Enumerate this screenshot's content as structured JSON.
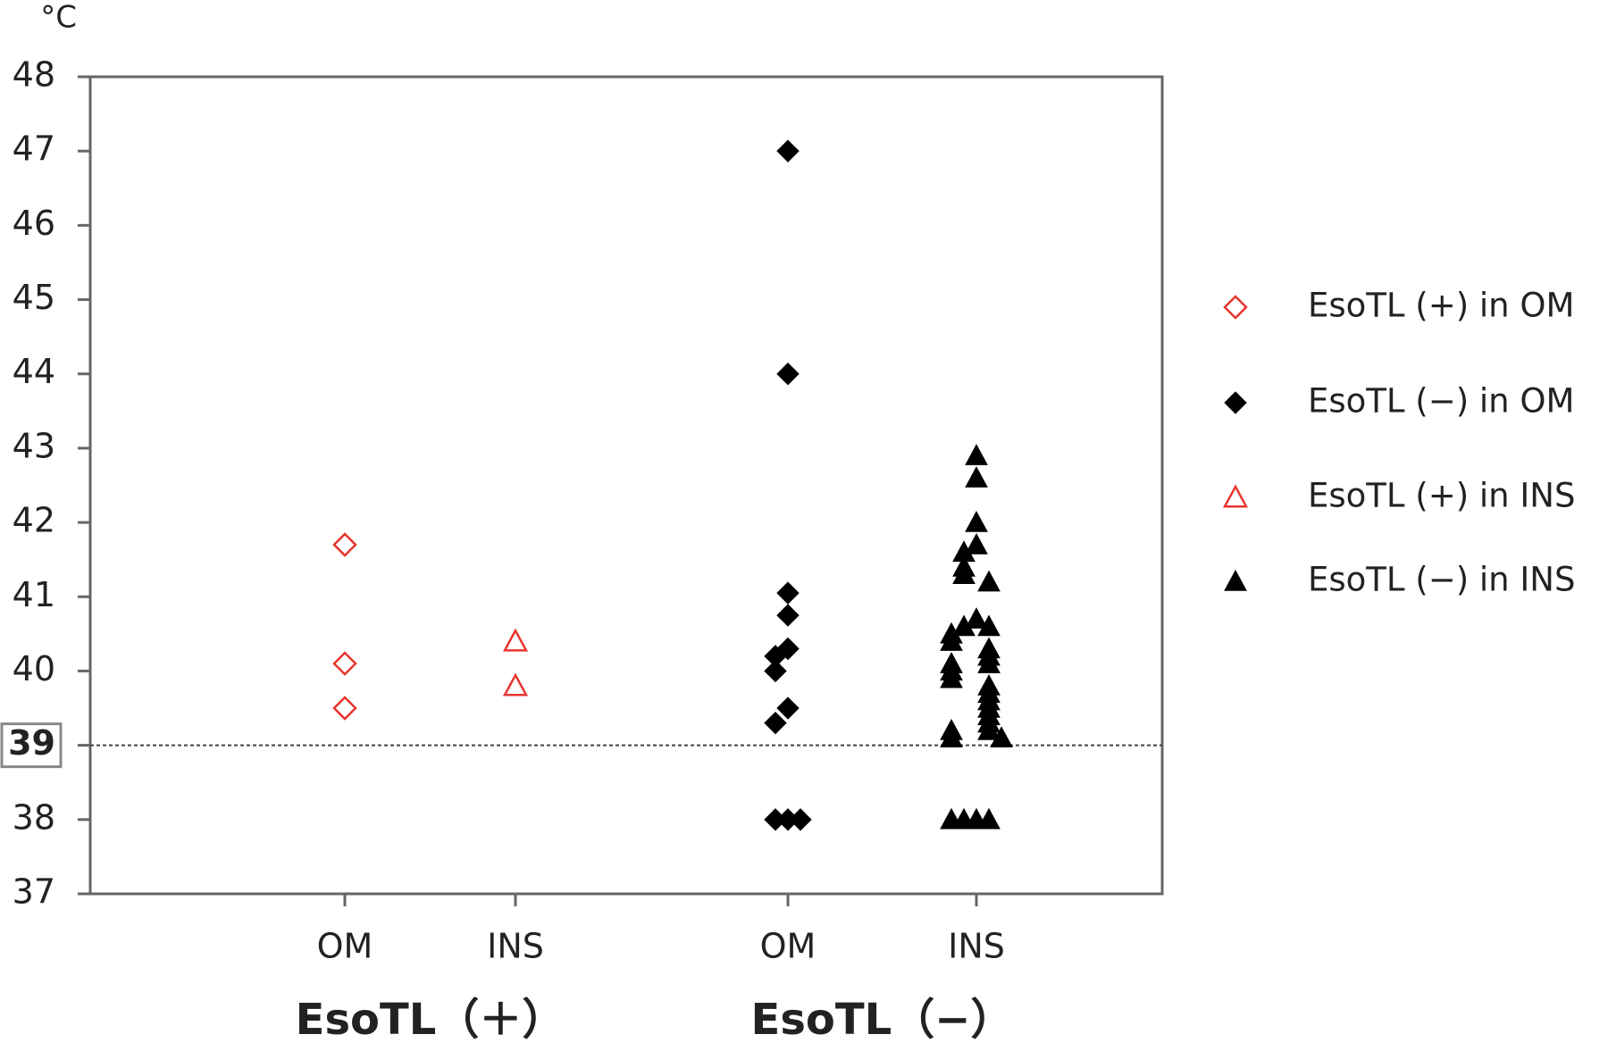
{
  "chart_data": {
    "type": "strip",
    "y_unit": "°C",
    "categories": [
      "OM",
      "INS",
      "OM",
      "INS"
    ],
    "groups": [
      {
        "name": "EsoTL（＋）",
        "categories": [
          0,
          1
        ]
      },
      {
        "name": "EsoTL（−）",
        "categories": [
          2,
          3
        ]
      }
    ],
    "series": [
      {
        "name": "EsoTL (+) in OM",
        "color": "#e8352f",
        "marker": "diamond-open",
        "category": 0,
        "values": [
          41.7,
          40.1,
          39.5
        ]
      },
      {
        "name": "EsoTL  (−) in OM",
        "color": "#000000",
        "marker": "diamond",
        "category": 2,
        "values": [
          47,
          44,
          41.05,
          40.75,
          40.3,
          40.2,
          40.0,
          39.5,
          39.3,
          38,
          38,
          38
        ]
      },
      {
        "name": "EsoTL (+) in INS",
        "color": "#e8352f",
        "marker": "triangle-open",
        "category": 1,
        "values": [
          40.4,
          39.8
        ]
      },
      {
        "name": "EsoTL  (−) in INS",
        "color": "#000000",
        "marker": "triangle",
        "category": 3,
        "values": [
          42.9,
          42.6,
          42.0,
          41.7,
          41.6,
          41.4,
          41.3,
          41.2,
          40.7,
          40.6,
          40.6,
          40.5,
          40.4,
          40.3,
          40.2,
          40.1,
          40.1,
          40.0,
          39.9,
          39.8,
          39.7,
          39.6,
          39.5,
          39.4,
          39.3,
          39.2,
          39.2,
          39.1,
          39.1,
          38,
          38,
          38,
          38
        ]
      }
    ],
    "ylim": [
      37,
      48
    ],
    "yticks": [
      37,
      38,
      39,
      40,
      41,
      42,
      43,
      44,
      45,
      46,
      47,
      48
    ],
    "highlighted_ytick": 39,
    "reference_line": 39,
    "legend": "right"
  }
}
